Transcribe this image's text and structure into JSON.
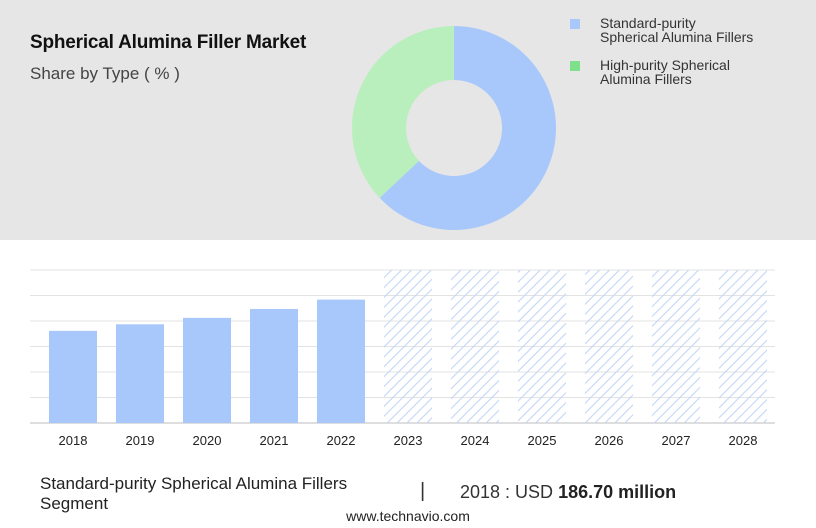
{
  "header": {
    "title": "Spherical Alumina Filler Market",
    "subtitle": "Share by Type ( % )"
  },
  "colors": {
    "standard": "#a8c8fb",
    "high_purity": "#b8efbc",
    "legend_high_purity": "#7ee08a",
    "panel_bg": "#e6e6e6",
    "hatch": "#c3d6f6"
  },
  "chart_data": [
    {
      "type": "pie",
      "variant": "donut",
      "series": [
        {
          "name": "Standard-purity Spherical Alumina Fillers",
          "value": 63
        },
        {
          "name": "High-purity Spherical Alumina Fillers",
          "value": 37
        }
      ],
      "legend": {
        "position": "top-right",
        "entries": [
          "Standard-purity Spherical Alumina Fillers",
          "High-purity Spherical Alumina Fillers"
        ],
        "lines": [
          [
            "Standard-purity",
            "Spherical Alumina Fillers"
          ],
          [
            "High-purity Spherical",
            "Alumina Fillers"
          ]
        ]
      }
    },
    {
      "type": "bar",
      "categories": [
        "2018",
        "2019",
        "2020",
        "2021",
        "2022",
        "2023",
        "2024",
        "2025",
        "2026",
        "2027",
        "2028"
      ],
      "values": [
        186.7,
        200,
        213,
        231,
        250,
        null,
        null,
        null,
        null,
        null,
        null
      ],
      "forecast_from": "2023",
      "ylim": [
        0,
        310
      ],
      "grid": true,
      "y_tick_labels": false
    }
  ],
  "footer": {
    "segment": "Standard-purity Spherical Alumina Fillers Segment",
    "divider": "|",
    "value_prefix": "2018 : USD",
    "value_bold": "186.70 million",
    "source": "www.technavio.com"
  }
}
